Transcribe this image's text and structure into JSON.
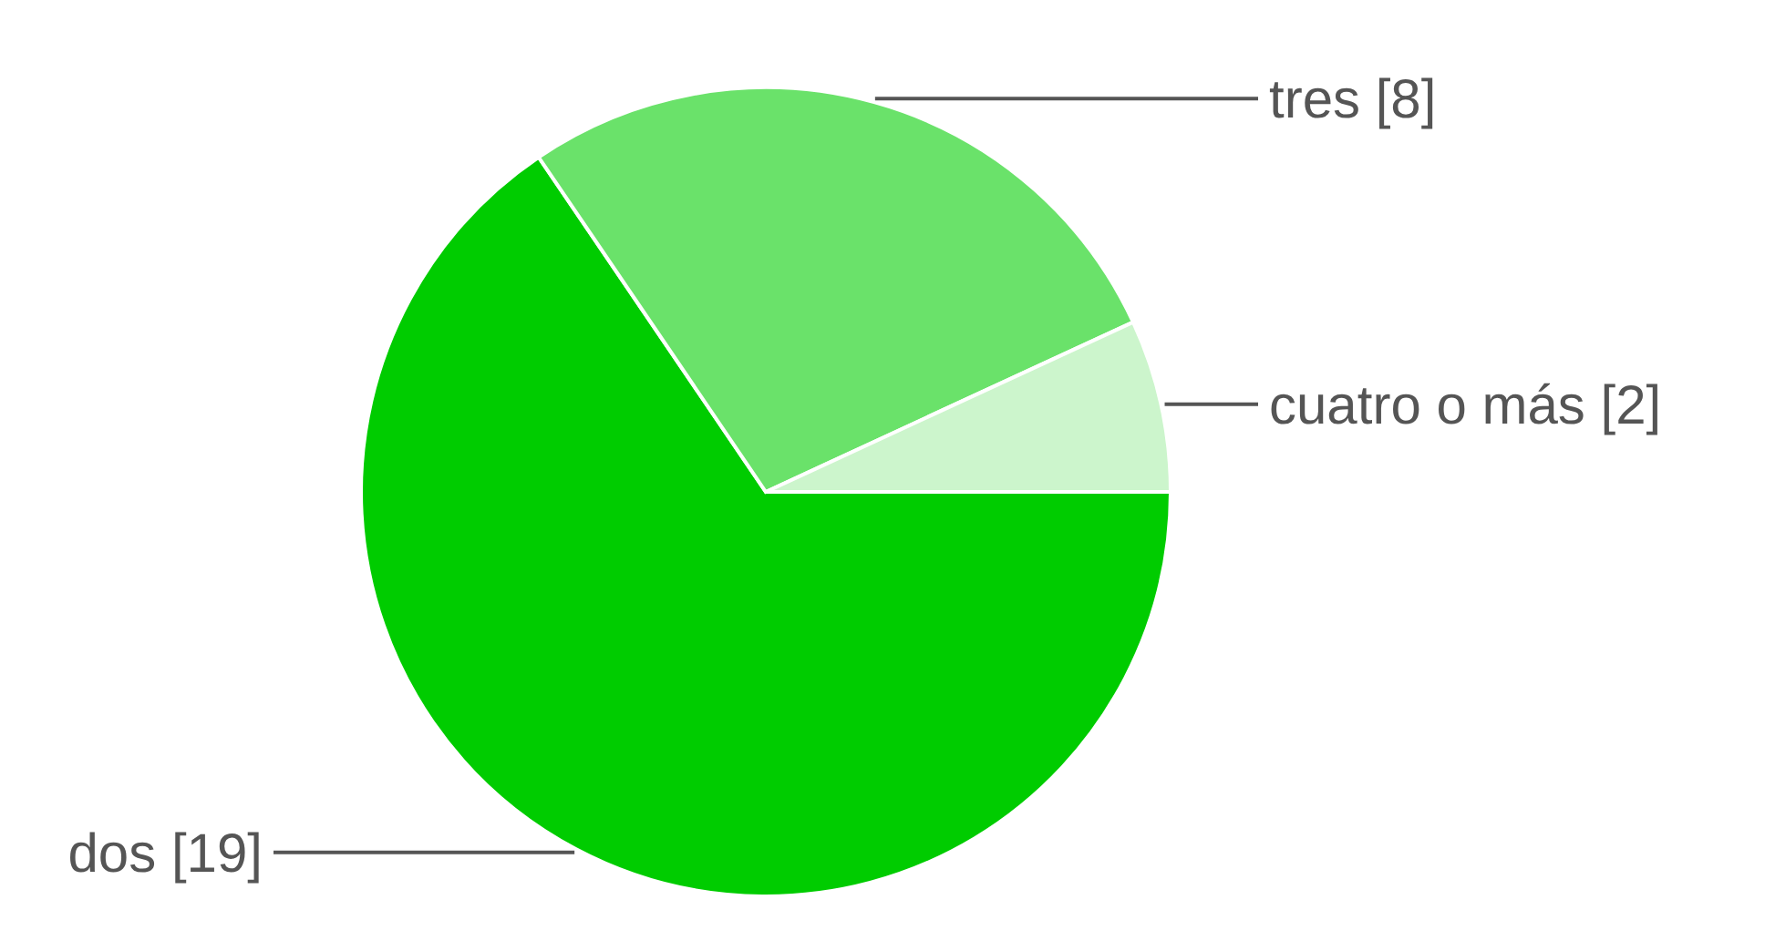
{
  "chart_data": {
    "type": "pie",
    "categories": [
      "dos [19]",
      "tres [8]",
      "cuatro o más [2]"
    ],
    "values": [
      19,
      8,
      2
    ],
    "colors": [
      "#00cc00",
      "#6ae26a",
      "#ccf5cc"
    ]
  }
}
